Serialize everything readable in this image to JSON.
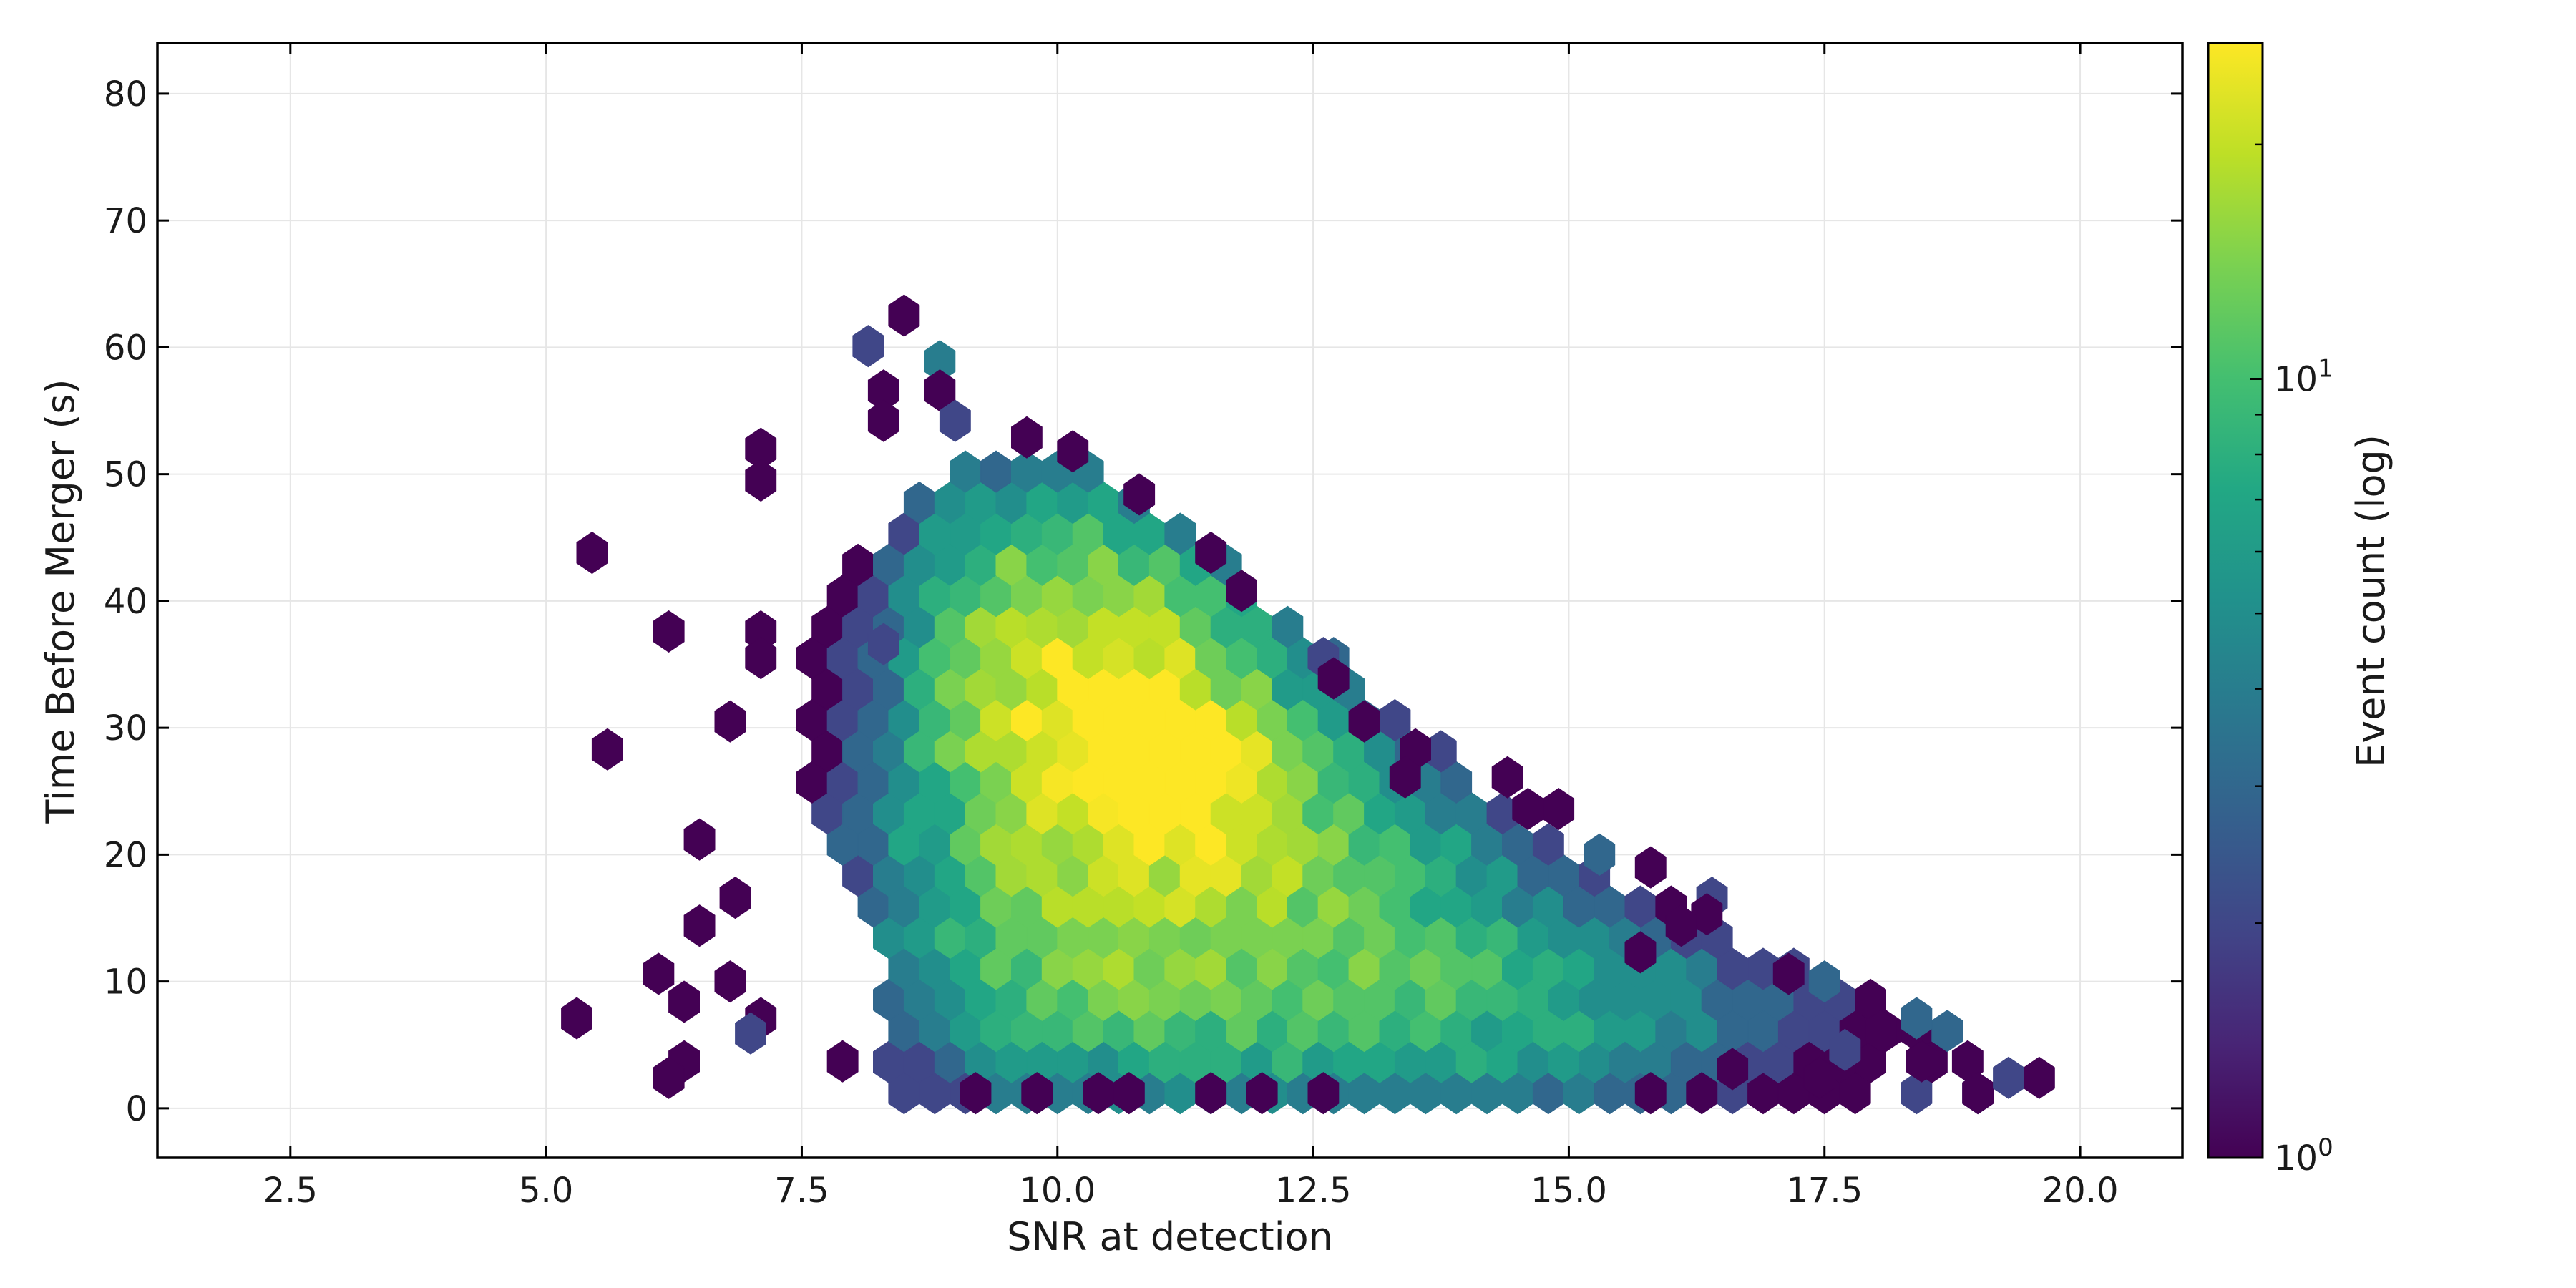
{
  "chart_data": {
    "type": "heatmap",
    "subtype": "hexbin",
    "title": "",
    "xlabel": "SNR at detection",
    "ylabel": "Time Before Merger (s)",
    "xlim": [
      1.2,
      21.0
    ],
    "ylim": [
      -3.9,
      84.0
    ],
    "xticks": [
      2.5,
      5.0,
      7.5,
      10.0,
      12.5,
      15.0,
      17.5,
      20.0
    ],
    "xtick_labels": [
      "2.5",
      "5.0",
      "7.5",
      "10.0",
      "12.5",
      "15.0",
      "17.5",
      "20.0"
    ],
    "yticks": [
      0,
      10,
      20,
      30,
      40,
      50,
      60,
      70,
      80
    ],
    "ytick_labels": [
      "0",
      "10",
      "20",
      "30",
      "40",
      "50",
      "60",
      "70",
      "80"
    ],
    "grid": true,
    "colormap": "viridis",
    "color_scale": "log",
    "colorbar": {
      "label": "Event count (log)",
      "range": [
        1,
        27
      ],
      "major_ticks": [
        {
          "value": 1,
          "base": "10",
          "exp": "0"
        },
        {
          "value": 10,
          "base": "10",
          "exp": "1"
        }
      ],
      "minor_ticks": [
        2,
        3,
        4,
        5,
        6,
        7,
        8,
        9,
        20
      ]
    },
    "hex_grid": {
      "x_step": 0.3,
      "y_step": 2.45
    },
    "bins_sparse": [
      [
        5.45,
        43.8,
        1
      ],
      [
        5.6,
        28.3,
        1
      ],
      [
        5.3,
        7.1,
        1
      ],
      [
        6.2,
        37.6,
        1
      ],
      [
        6.1,
        10.6,
        1
      ],
      [
        6.35,
        8.4,
        1
      ],
      [
        6.5,
        21.2,
        1
      ],
      [
        6.5,
        14.4,
        1
      ],
      [
        6.35,
        3.7,
        1
      ],
      [
        6.2,
        2.4,
        1
      ],
      [
        6.8,
        30.5,
        1
      ],
      [
        6.85,
        16.6,
        1
      ],
      [
        6.8,
        10.0,
        1
      ],
      [
        7.1,
        7.1,
        1
      ],
      [
        7.0,
        5.9,
        2
      ],
      [
        7.1,
        52.0,
        1
      ],
      [
        7.1,
        49.5,
        1
      ],
      [
        7.1,
        37.6,
        1
      ],
      [
        7.1,
        35.5,
        1
      ],
      [
        8.3,
        36.6,
        2
      ],
      [
        7.9,
        3.7,
        1
      ],
      [
        8.5,
        62.5,
        1
      ],
      [
        8.15,
        60.1,
        2
      ],
      [
        8.3,
        56.6,
        1
      ],
      [
        8.3,
        54.2,
        1
      ],
      [
        8.85,
        58.9,
        4
      ],
      [
        8.85,
        56.6,
        1
      ],
      [
        9.0,
        54.2,
        2
      ],
      [
        9.7,
        52.9,
        1
      ],
      [
        10.15,
        51.8,
        1
      ],
      [
        10.8,
        48.4,
        1
      ],
      [
        11.5,
        43.8,
        1
      ],
      [
        11.8,
        40.8,
        1
      ],
      [
        12.6,
        35.5,
        2
      ],
      [
        12.7,
        33.9,
        1
      ],
      [
        13.0,
        30.5,
        1
      ],
      [
        13.5,
        28.3,
        1
      ],
      [
        13.4,
        26.1,
        1
      ],
      [
        14.4,
        26.1,
        1
      ],
      [
        14.6,
        23.6,
        1
      ],
      [
        14.9,
        23.6,
        1
      ],
      [
        15.3,
        20.0,
        3
      ],
      [
        15.8,
        19.0,
        1
      ],
      [
        16.4,
        16.6,
        2
      ],
      [
        16.35,
        15.3,
        1
      ],
      [
        16.1,
        14.4,
        1
      ],
      [
        15.7,
        12.3,
        1
      ],
      [
        15.8,
        1.2,
        1
      ],
      [
        16.3,
        1.2,
        1
      ],
      [
        16.6,
        3.1,
        1
      ],
      [
        17.15,
        10.6,
        1
      ],
      [
        17.45,
        2.4,
        1
      ],
      [
        17.5,
        10.0,
        3
      ],
      [
        17.7,
        4.6,
        2
      ],
      [
        18.05,
        6.1,
        1
      ],
      [
        18.4,
        7.1,
        3
      ],
      [
        18.45,
        3.7,
        1
      ],
      [
        18.7,
        6.1,
        3
      ],
      [
        18.9,
        3.7,
        1
      ],
      [
        19.0,
        1.2,
        1
      ],
      [
        19.3,
        2.4,
        2
      ],
      [
        19.6,
        2.4,
        1
      ],
      [
        11.5,
        1.2,
        1
      ],
      [
        12.0,
        1.2,
        1
      ],
      [
        12.6,
        1.2,
        1
      ],
      [
        9.2,
        1.2,
        1
      ],
      [
        9.8,
        1.2,
        1
      ],
      [
        10.4,
        1.2,
        1
      ],
      [
        10.7,
        1.2,
        1
      ]
    ],
    "density_components": [
      {
        "center": [
          10.6,
          31.0
        ],
        "spread": [
          1.05,
          6.2
        ],
        "peak": 19
      },
      {
        "center": [
          11.3,
          24.5
        ],
        "spread": [
          1.0,
          5.0
        ],
        "peak": 13
      },
      {
        "center": [
          10.0,
          22.0
        ],
        "spread": [
          1.1,
          11.0
        ],
        "peak": 9
      },
      {
        "center": [
          11.2,
          11.0
        ],
        "spread": [
          1.7,
          7.0
        ],
        "peak": 8
      },
      {
        "center": [
          10.3,
          40.0
        ],
        "spread": [
          0.9,
          6.0
        ],
        "peak": 8
      },
      {
        "center": [
          13.2,
          10.0
        ],
        "spread": [
          1.6,
          6.0
        ],
        "peak": 6
      },
      {
        "center": [
          9.4,
          44.0
        ],
        "spread": [
          0.7,
          7.0
        ],
        "peak": 4
      },
      {
        "center": [
          15.4,
          6.5
        ],
        "spread": [
          1.5,
          5.0
        ],
        "peak": 4
      },
      {
        "center": [
          12.6,
          20.0
        ],
        "spread": [
          1.3,
          5.0
        ],
        "peak": 5
      }
    ],
    "left_cluster": {
      "center": [
        7.9,
        13.0
      ],
      "spread": [
        0.35,
        4.0
      ],
      "value": 1
    },
    "support_boundary": [
      [
        8.3,
        0
      ],
      [
        8.3,
        13
      ],
      [
        7.9,
        17
      ],
      [
        7.5,
        26
      ],
      [
        7.6,
        40
      ],
      [
        8.4,
        46.5
      ],
      [
        9.0,
        51.5
      ],
      [
        10.3,
        52.5
      ],
      [
        10.8,
        48.5
      ],
      [
        12.8,
        35.5
      ],
      [
        14.3,
        24.5
      ],
      [
        15.3,
        19.0
      ],
      [
        17.5,
        10.5
      ],
      [
        18.5,
        6.5
      ],
      [
        19.5,
        2.5
      ],
      [
        19.5,
        0
      ]
    ]
  }
}
